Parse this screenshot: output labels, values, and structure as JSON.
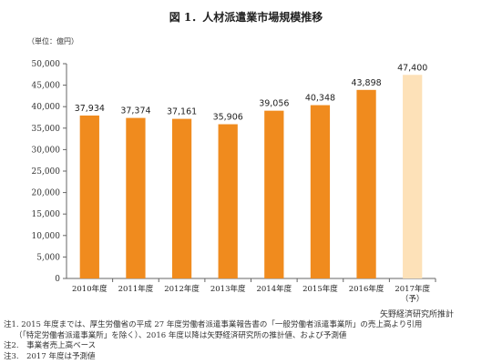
{
  "chart_data": {
    "type": "bar",
    "title": "図 1．人材派遣業市場規模推移",
    "unit_label": "（単位：億円）",
    "categories": [
      "2010年度",
      "2011年度",
      "2012年度",
      "2013年度",
      "2014年度",
      "2015年度",
      "2016年度",
      "2017年度"
    ],
    "category_suffix": [
      "",
      "",
      "",
      "",
      "",
      "",
      "",
      "（予）"
    ],
    "values": [
      37934,
      37374,
      37161,
      35906,
      39056,
      40348,
      43898,
      47400
    ],
    "value_labels": [
      "37,934",
      "37,374",
      "37,161",
      "35,906",
      "39,056",
      "40,348",
      "43,898",
      "47,400"
    ],
    "forecast": [
      false,
      false,
      false,
      false,
      false,
      false,
      false,
      true
    ],
    "ylim": [
      0,
      50000
    ],
    "yticks": [
      0,
      5000,
      10000,
      15000,
      20000,
      25000,
      30000,
      35000,
      40000,
      45000,
      50000
    ],
    "ytick_labels": [
      "0",
      "5,000",
      "10,000",
      "15,000",
      "20,000",
      "25,000",
      "30,000",
      "35,000",
      "40,000",
      "45,000",
      "50,000"
    ],
    "grid": false,
    "colors": {
      "actual": "#f08b1e",
      "forecast": "#fde1b8"
    }
  },
  "source": "矢野経済研究所推計",
  "notes": [
    "注1. 2015 年度までは、厚生労働省の平成 27 年度労働者派遣事業報告書の「一般労働者派遣事業所」の売上高より引用",
    "（「特定労働者派遣事業所」を除く）、2016 年度以降は矢野経済研究所の推計値、および予測値",
    "注2.　事業者売上高ベース",
    "注3.　2017 年度は予測値"
  ]
}
